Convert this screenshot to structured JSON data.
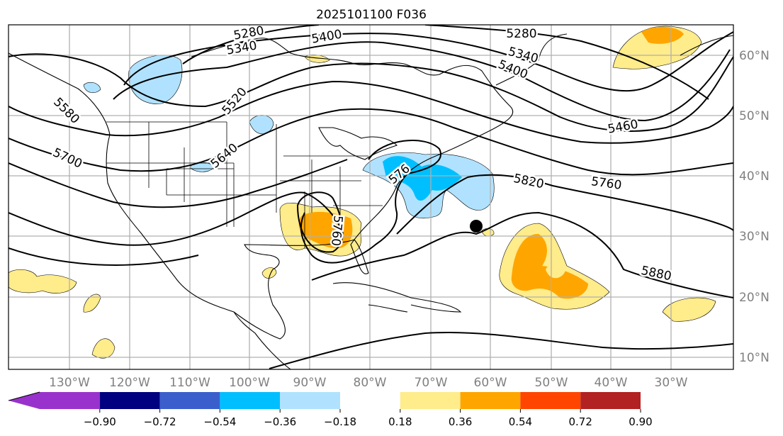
{
  "title": "2025101100 F036",
  "map": {
    "lon_labels": [
      "130°W",
      "120°W",
      "110°W",
      "100°W",
      "90°W",
      "80°W",
      "70°W",
      "60°W",
      "50°W",
      "40°W",
      "30°W"
    ],
    "lat_labels": [
      "60°N",
      "50°N",
      "40°N",
      "30°N",
      "20°N",
      "10°N"
    ],
    "contour_labels": [
      "5280",
      "5340",
      "5400",
      "5280",
      "5340",
      "5400",
      "5460",
      "5520",
      "5580",
      "5640",
      "5700",
      "5760",
      "576",
      "5820",
      "5760",
      "5880"
    ],
    "marker": "storm-position-dot"
  },
  "colorbar": {
    "ticks": [
      "−0.90",
      "−0.72",
      "−0.54",
      "−0.36",
      "−0.18",
      "0.18",
      "0.36",
      "0.54",
      "0.72",
      "0.90"
    ],
    "colors": [
      "#9932cc",
      "#000080",
      "#3a5fcd",
      "#00bfff",
      "#b0e2ff",
      "#ffffff",
      "#ffec8b",
      "#ffa500",
      "#ff4500",
      "#b22222",
      "#ff82ab"
    ]
  }
}
